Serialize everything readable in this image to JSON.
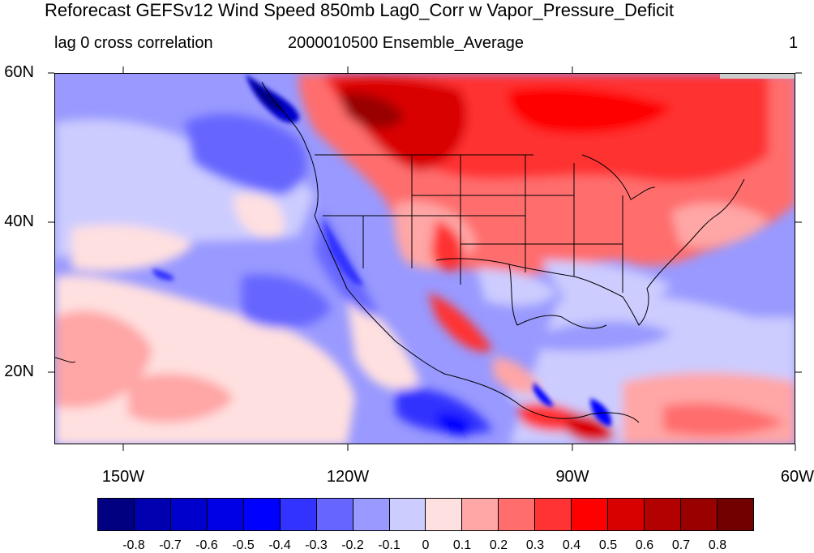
{
  "title": "Reforecast GEFSv12 Wind Speed 850mb Lag0_Corr w Vapor_Pressure_Deficit",
  "subtitle_left": "lag 0 cross correlation",
  "subtitle_center": "2000010500 Ensemble_Average",
  "subtitle_right": "1",
  "map": {
    "projection": "cylindrical-equidistant",
    "lon_range": [
      -159,
      -60
    ],
    "lat_range": [
      10,
      60
    ],
    "lat_labels": [
      "60N",
      "40N",
      "20N"
    ],
    "lon_labels": [
      "150W",
      "120W",
      "90W",
      "60W"
    ],
    "land_outline_color": "#000000"
  },
  "colorbar": {
    "colors": [
      "#000080",
      "#0000b0",
      "#0000cc",
      "#0000e6",
      "#0000ff",
      "#3333ff",
      "#6666ff",
      "#9999ff",
      "#ccccff",
      "#ffe0e0",
      "#ffa6a6",
      "#ff6d6d",
      "#ff3333",
      "#ff0000",
      "#d90000",
      "#b30000",
      "#990000",
      "#730000"
    ],
    "labels": [
      "-0.8",
      "-0.7",
      "-0.6",
      "-0.5",
      "-0.4",
      "-0.3",
      "-0.2",
      "-0.1",
      "0",
      "0.1",
      "0.2",
      "0.3",
      "0.4",
      "0.5",
      "0.6",
      "0.7",
      "0.8"
    ]
  }
}
